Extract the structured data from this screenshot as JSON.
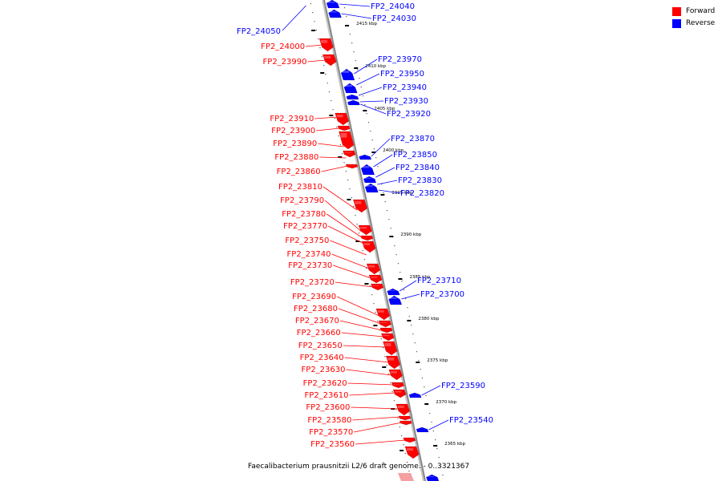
{
  "caption": "Faecalibacterium prausnitzii L2/6 draft genome. - 0..3321367",
  "legend": [
    {
      "label": "Forward",
      "color": "#ff0000"
    },
    {
      "label": "Reverse",
      "color": "#0000ff"
    }
  ],
  "colors": {
    "forward": "#ff0000",
    "reverse": "#0000ff",
    "backbone": "#888888"
  },
  "ticks": [
    "2415 kbp",
    "2410 kbp",
    "2405 kbp",
    "2400 kbp",
    "2395 kbp",
    "2390 kbp",
    "2385 kbp",
    "2380 kbp",
    "2375 kbp",
    "2370 kbp",
    "2365 kbp"
  ],
  "forward_genes": [
    "FP2_24000",
    "FP2_23990",
    "FP2_23910",
    "FP2_23900",
    "FP2_23890",
    "FP2_23880",
    "FP2_23860",
    "FP2_23810",
    "FP2_23790",
    "FP2_23780",
    "FP2_23770",
    "FP2_23750",
    "FP2_23740",
    "FP2_23730",
    "FP2_23720",
    "FP2_23690",
    "FP2_23680",
    "FP2_23670",
    "FP2_23660",
    "FP2_23650",
    "FP2_23640",
    "FP2_23630",
    "FP2_23620",
    "FP2_23610",
    "FP2_23600",
    "FP2_23580",
    "FP2_23570",
    "FP2_23560"
  ],
  "reverse_genes": [
    "FP2_24050",
    "FP2_24040",
    "FP2_24030",
    "FP2_23970",
    "FP2_23950",
    "FP2_23940",
    "FP2_23930",
    "FP2_23920",
    "FP2_23870",
    "FP2_23850",
    "FP2_23840",
    "FP2_23830",
    "FP2_23820",
    "FP2_23710",
    "FP2_23700",
    "FP2_23590",
    "FP2_23540"
  ]
}
